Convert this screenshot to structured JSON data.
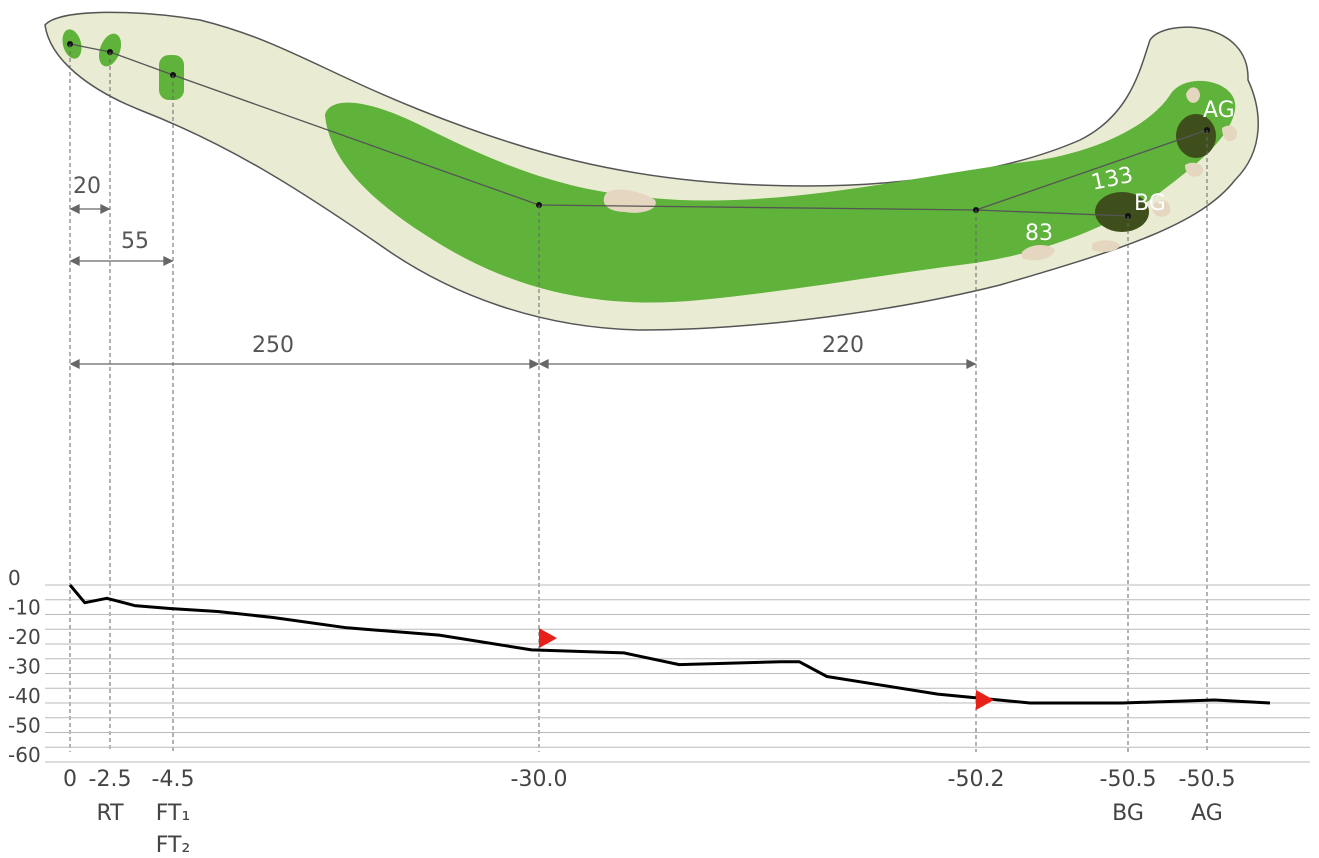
{
  "hole_map": {
    "distances": {
      "d20": "20",
      "d55": "55",
      "d250": "250",
      "d220": "220"
    },
    "markers": {
      "m133": "133",
      "m83": "83",
      "bg": "BG",
      "ag": "AG"
    },
    "colors": {
      "rough": "#e9ecd2",
      "fairway": "#5fb23a",
      "green_dark": "#3f4f1c",
      "bunker": "#e4d6bf",
      "outline": "#555555"
    }
  },
  "chart_data": {
    "type": "line",
    "ylim": [
      -60,
      0
    ],
    "y_ticks": [
      "0",
      "-10",
      "-20",
      "-30",
      "-40",
      "-50",
      "-60"
    ],
    "y_tick_values": [
      0,
      -10,
      -20,
      -30,
      -40,
      -50,
      -60
    ],
    "x_markers": [
      {
        "value": "0",
        "sub": ""
      },
      {
        "value": "-2.5",
        "sub": "RT"
      },
      {
        "value": "-4.5",
        "sub": "FT₁",
        "sub2": "FT₂"
      },
      {
        "value": "-30.0",
        "sub": ""
      },
      {
        "value": "-50.2",
        "sub": ""
      },
      {
        "value": "-50.5",
        "sub": "BG"
      },
      {
        "value": "-50.5",
        "sub": "AG"
      }
    ],
    "distance_along_hole": [
      0,
      20,
      55,
      250,
      470
    ],
    "profile_points": [
      [
        0,
        0
      ],
      [
        8,
        -6
      ],
      [
        20,
        -4.5
      ],
      [
        35,
        -7
      ],
      [
        55,
        -8
      ],
      [
        80,
        -9
      ],
      [
        110,
        -11
      ],
      [
        150,
        -14.5
      ],
      [
        200,
        -17
      ],
      [
        250,
        -22
      ],
      [
        300,
        -23
      ],
      [
        330,
        -27
      ],
      [
        385,
        -26
      ],
      [
        395,
        -26
      ],
      [
        410,
        -31
      ],
      [
        440,
        -34
      ],
      [
        470,
        -37
      ],
      [
        520,
        -40
      ],
      [
        570,
        -40
      ],
      [
        620,
        -39
      ],
      [
        650,
        -40
      ]
    ],
    "flags": [
      {
        "at": 250,
        "y": -18
      },
      {
        "at": 470,
        "y": -39
      }
    ],
    "line_color": "#000000",
    "flag_color": "#e8201a",
    "grid_color": "#bbbbbb"
  }
}
